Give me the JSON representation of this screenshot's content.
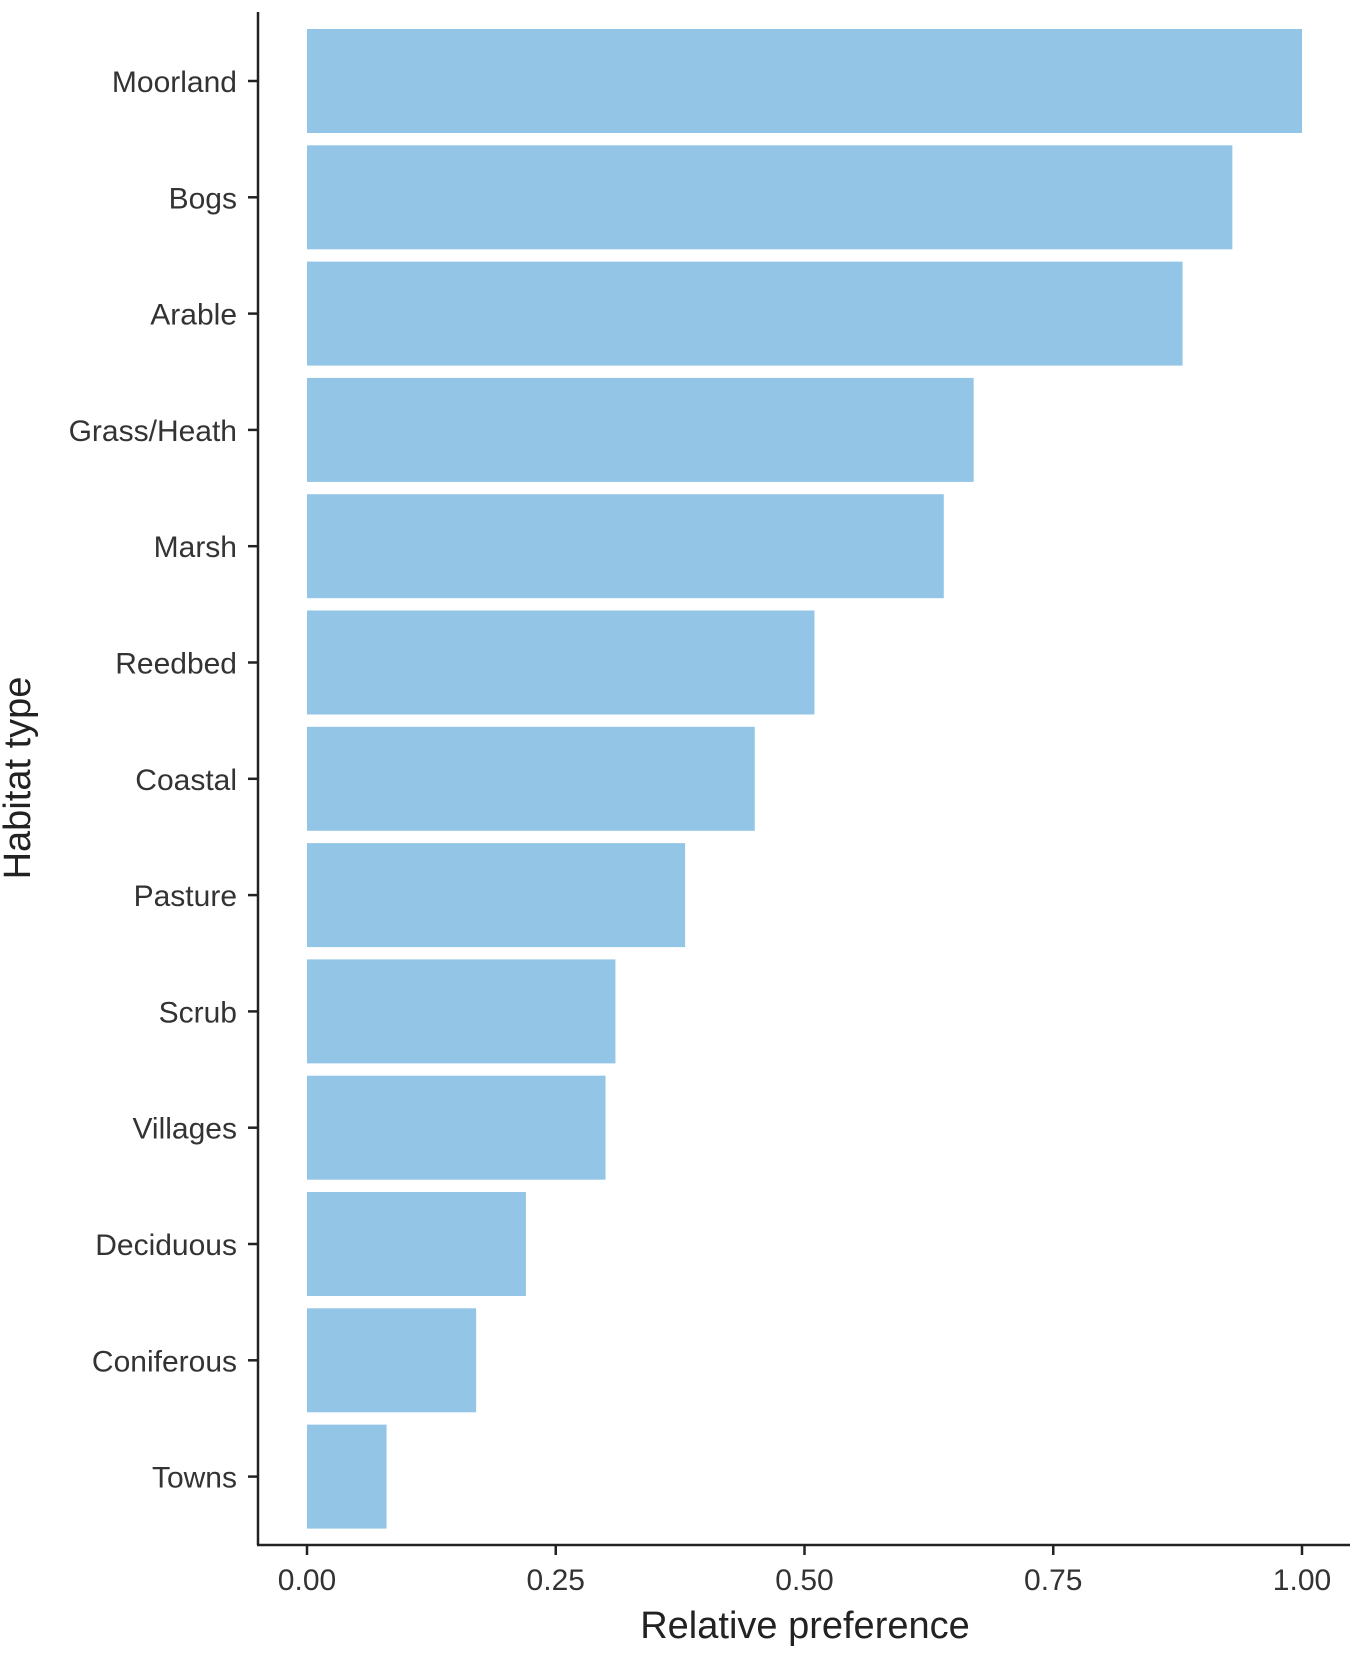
{
  "chart_data": {
    "type": "bar",
    "orientation": "horizontal",
    "categories": [
      "Moorland",
      "Bogs",
      "Arable",
      "Grass/Heath",
      "Marsh",
      "Reedbed",
      "Coastal",
      "Pasture",
      "Scrub",
      "Villages",
      "Deciduous",
      "Coniferous",
      "Towns"
    ],
    "values": [
      1.0,
      0.93,
      0.88,
      0.67,
      0.64,
      0.51,
      0.45,
      0.38,
      0.31,
      0.3,
      0.22,
      0.17,
      0.08
    ],
    "xlabel": "Relative preference",
    "ylabel": "Habitat type",
    "xlim": [
      0,
      1.0
    ],
    "xticks": [
      0.0,
      0.25,
      0.5,
      0.75,
      1.0
    ],
    "xtick_labels": [
      "0.00",
      "0.25",
      "0.50",
      "0.75",
      "1.00"
    ],
    "bar_color": "#93c6e6",
    "grid": false
  }
}
